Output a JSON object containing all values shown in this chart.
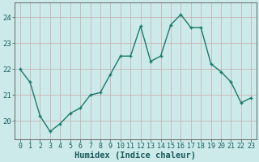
{
  "x": [
    0,
    1,
    2,
    3,
    4,
    5,
    6,
    7,
    8,
    9,
    10,
    11,
    12,
    13,
    14,
    15,
    16,
    17,
    18,
    19,
    20,
    21,
    22,
    23
  ],
  "y": [
    22.0,
    21.5,
    20.2,
    19.6,
    19.9,
    20.3,
    20.5,
    21.0,
    21.1,
    21.8,
    22.5,
    22.5,
    23.65,
    22.3,
    22.5,
    23.7,
    24.1,
    23.6,
    23.6,
    22.2,
    21.9,
    21.5,
    20.7,
    20.9
  ],
  "line_color": "#1a7a6a",
  "marker": "+",
  "marker_size": 3.5,
  "bg_color": "#cceaea",
  "grid_color_v": "#c8a8a8",
  "grid_color_h": "#c8a8a8",
  "xlabel": "Humidex (Indice chaleur)",
  "ylim": [
    19.3,
    24.55
  ],
  "yticks": [
    20,
    21,
    22,
    23,
    24
  ],
  "xticks": [
    0,
    1,
    2,
    3,
    4,
    5,
    6,
    7,
    8,
    9,
    10,
    11,
    12,
    13,
    14,
    15,
    16,
    17,
    18,
    19,
    20,
    21,
    22,
    23
  ],
  "tick_fontsize": 6.0,
  "xlabel_fontsize": 7.5,
  "linewidth": 1.0
}
